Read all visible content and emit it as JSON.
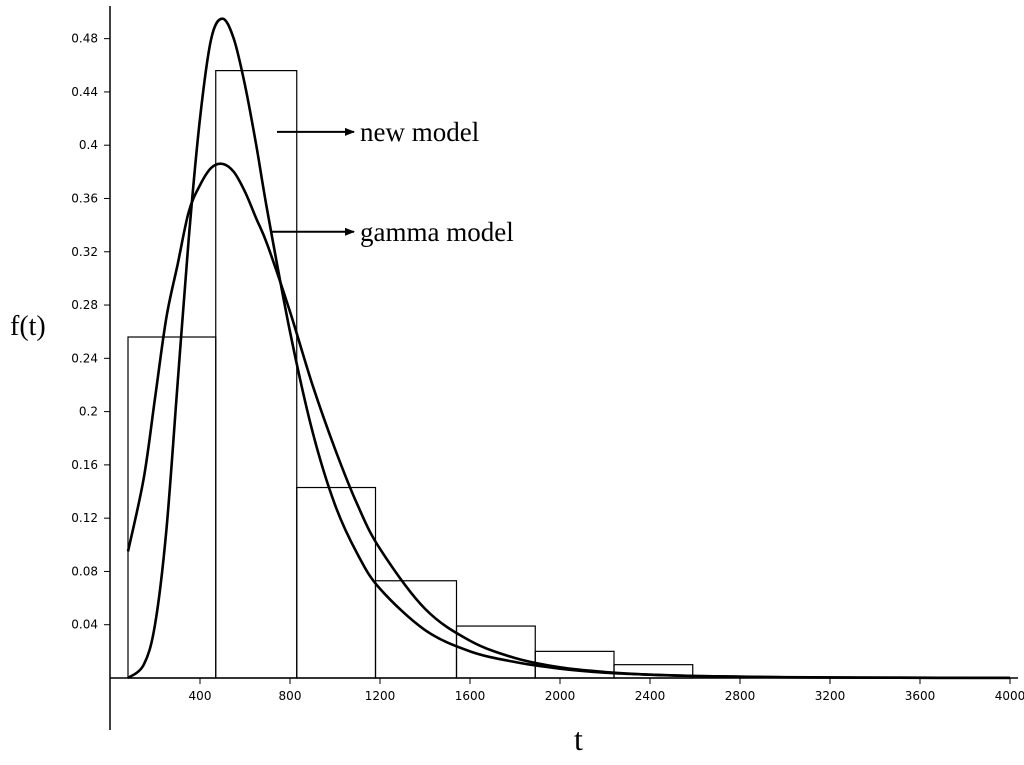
{
  "chart_data": {
    "type": "line",
    "xlabel": "t",
    "ylabel": "f(t)",
    "xlim": [
      0,
      4000
    ],
    "ylim": [
      0,
      0.5
    ],
    "x_ticks": [
      400,
      800,
      1200,
      1600,
      2000,
      2400,
      2800,
      3200,
      3600,
      4000
    ],
    "y_ticks": [
      0.04,
      0.08,
      0.12,
      0.16,
      0.2,
      0.24,
      0.28,
      0.32,
      0.36,
      0.4,
      0.44,
      0.48
    ],
    "grid": false,
    "legend": "none",
    "histogram": {
      "bins": [
        {
          "x0": 80,
          "x1": 470,
          "value": 0.256
        },
        {
          "x0": 470,
          "x1": 830,
          "value": 0.456
        },
        {
          "x0": 830,
          "x1": 1180,
          "value": 0.143
        },
        {
          "x0": 1180,
          "x1": 1540,
          "value": 0.073
        },
        {
          "x0": 1540,
          "x1": 1890,
          "value": 0.039
        },
        {
          "x0": 1890,
          "x1": 2240,
          "value": 0.02
        },
        {
          "x0": 2240,
          "x1": 2590,
          "value": 0.01
        }
      ]
    },
    "series": [
      {
        "name": "new model",
        "x": [
          80,
          150,
          200,
          250,
          300,
          350,
          400,
          450,
          500,
          550,
          600,
          650,
          700,
          800,
          900,
          1000,
          1100,
          1200,
          1400,
          1600,
          1800,
          2000,
          2200,
          2400,
          2600,
          2800,
          3000,
          3500,
          4000
        ],
        "y": [
          0.0,
          0.01,
          0.04,
          0.11,
          0.22,
          0.33,
          0.42,
          0.48,
          0.495,
          0.48,
          0.445,
          0.4,
          0.35,
          0.26,
          0.185,
          0.13,
          0.093,
          0.067,
          0.036,
          0.02,
          0.012,
          0.007,
          0.004,
          0.0025,
          0.0015,
          0.001,
          0.0005,
          0.0002,
          0.0001
        ]
      },
      {
        "name": "gamma model",
        "x": [
          80,
          150,
          200,
          250,
          300,
          350,
          400,
          450,
          500,
          550,
          600,
          650,
          700,
          800,
          900,
          1000,
          1100,
          1200,
          1400,
          1600,
          1800,
          2000,
          2200,
          2400,
          2600,
          2800,
          3000,
          3500,
          4000
        ],
        "y": [
          0.095,
          0.15,
          0.21,
          0.27,
          0.31,
          0.35,
          0.37,
          0.383,
          0.386,
          0.38,
          0.365,
          0.345,
          0.325,
          0.275,
          0.22,
          0.172,
          0.13,
          0.097,
          0.052,
          0.028,
          0.015,
          0.008,
          0.0045,
          0.0025,
          0.0015,
          0.001,
          0.0006,
          0.0002,
          0.0001
        ]
      }
    ],
    "annotations": [
      {
        "text": "new model",
        "target_series": 0
      },
      {
        "text": "gamma model",
        "target_series": 1
      }
    ]
  }
}
